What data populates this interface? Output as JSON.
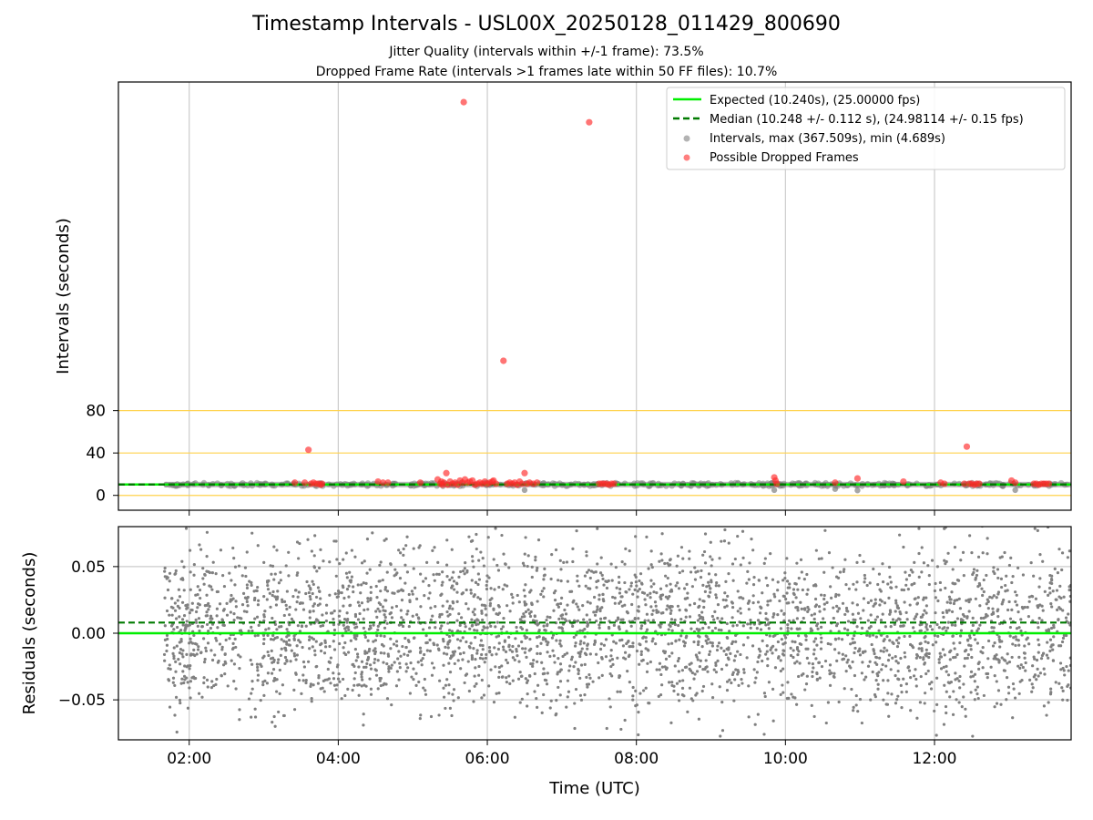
{
  "title": "Timestamp Intervals - USL00X_20250128_011429_800690",
  "subtitle_1": "Jitter Quality (intervals within +/-1 frame): 73.5%",
  "subtitle_2": "Dropped Frame Rate (intervals >1 frames late within 50 FF files): 10.7%",
  "colors": {
    "expected": "#00ee00",
    "median": "#007a00",
    "intervals": "#808080",
    "dropped": "#ff2a2a",
    "threshold": "#ffd24d",
    "grid": "#cccccc"
  },
  "chart_data": [
    {
      "type": "scatter",
      "panel": "intervals",
      "ylabel": "Intervals (seconds)",
      "xlim": [
        "01:03",
        "13:50"
      ],
      "ylim": [
        -14,
        390
      ],
      "xticks": [
        "02:00",
        "04:00",
        "06:00",
        "08:00",
        "10:00",
        "12:00"
      ],
      "yticks": [
        0,
        40,
        80
      ],
      "reference_lines": [
        {
          "name": "threshold",
          "y": 0
        },
        {
          "name": "threshold",
          "y": 40
        },
        {
          "name": "threshold",
          "y": 80
        }
      ],
      "grid": true,
      "legend_position": "top-right",
      "legend": [
        {
          "label": "Expected (10.240s), (25.00000 fps)",
          "marker": "line",
          "color": "#00ee00"
        },
        {
          "label": "Median (10.248 +/- 0.112 s), (24.98114 +/- 0.15 fps)",
          "marker": "dashed",
          "color": "#007a00"
        },
        {
          "label": "Intervals, max (367.509s), min (4.689s)",
          "marker": "dot",
          "color": "#808080"
        },
        {
          "label": "Possible Dropped Frames",
          "marker": "dot",
          "color": "#ff2a2a"
        }
      ],
      "expected_interval": 10.24,
      "median_interval": 10.248,
      "intervals_span": {
        "start": "01:40",
        "end": "13:50",
        "typical": 10.24,
        "min": 4.689,
        "max": 367.509
      },
      "dropped_frames": [
        {
          "x": "03:25",
          "y": 12
        },
        {
          "x": "03:33",
          "y": 12
        },
        {
          "x": "03:36",
          "y": 43
        },
        {
          "x": "03:38",
          "y": 11
        },
        {
          "x": "03:40",
          "y": 12
        },
        {
          "x": "03:42",
          "y": 11
        },
        {
          "x": "03:44",
          "y": 11
        },
        {
          "x": "03:46",
          "y": 10
        },
        {
          "x": "03:47",
          "y": 11
        },
        {
          "x": "04:32",
          "y": 13
        },
        {
          "x": "04:36",
          "y": 12
        },
        {
          "x": "04:40",
          "y": 12
        },
        {
          "x": "05:06",
          "y": 12
        },
        {
          "x": "05:20",
          "y": 15
        },
        {
          "x": "05:22",
          "y": 11
        },
        {
          "x": "05:23",
          "y": 13
        },
        {
          "x": "05:24",
          "y": 10
        },
        {
          "x": "05:25",
          "y": 12
        },
        {
          "x": "05:27",
          "y": 21
        },
        {
          "x": "05:28",
          "y": 10
        },
        {
          "x": "05:30",
          "y": 13
        },
        {
          "x": "05:32",
          "y": 11
        },
        {
          "x": "05:34",
          "y": 12
        },
        {
          "x": "05:36",
          "y": 10
        },
        {
          "x": "05:38",
          "y": 14
        },
        {
          "x": "05:40",
          "y": 12
        },
        {
          "x": "05:42",
          "y": 15
        },
        {
          "x": "05:44",
          "y": 12
        },
        {
          "x": "05:46",
          "y": 13
        },
        {
          "x": "05:48",
          "y": 14
        },
        {
          "x": "05:50",
          "y": 10
        },
        {
          "x": "05:41",
          "y": 371
        },
        {
          "x": "05:52",
          "y": 11
        },
        {
          "x": "05:54",
          "y": 12
        },
        {
          "x": "05:56",
          "y": 11
        },
        {
          "x": "05:58",
          "y": 13
        },
        {
          "x": "06:00",
          "y": 11
        },
        {
          "x": "06:02",
          "y": 12
        },
        {
          "x": "06:04",
          "y": 13
        },
        {
          "x": "06:05",
          "y": 14
        },
        {
          "x": "06:07",
          "y": 11
        },
        {
          "x": "06:13",
          "y": 127
        },
        {
          "x": "06:16",
          "y": 11
        },
        {
          "x": "06:18",
          "y": 12
        },
        {
          "x": "06:20",
          "y": 11
        },
        {
          "x": "06:22",
          "y": 12
        },
        {
          "x": "06:24",
          "y": 10
        },
        {
          "x": "06:26",
          "y": 13
        },
        {
          "x": "06:28",
          "y": 11
        },
        {
          "x": "06:30",
          "y": 21
        },
        {
          "x": "06:32",
          "y": 11
        },
        {
          "x": "06:34",
          "y": 12
        },
        {
          "x": "06:37",
          "y": 11
        },
        {
          "x": "06:40",
          "y": 12
        },
        {
          "x": "07:22",
          "y": 352
        },
        {
          "x": "07:30",
          "y": 11
        },
        {
          "x": "07:32",
          "y": 11
        },
        {
          "x": "07:34",
          "y": 11
        },
        {
          "x": "07:36",
          "y": 11
        },
        {
          "x": "07:38",
          "y": 10
        },
        {
          "x": "07:40",
          "y": 11
        },
        {
          "x": "07:42",
          "y": 11
        },
        {
          "x": "09:51",
          "y": 17
        },
        {
          "x": "09:52",
          "y": 14
        },
        {
          "x": "09:53",
          "y": 11
        },
        {
          "x": "10:40",
          "y": 12
        },
        {
          "x": "10:58",
          "y": 16
        },
        {
          "x": "11:35",
          "y": 13
        },
        {
          "x": "12:05",
          "y": 12
        },
        {
          "x": "12:08",
          "y": 11
        },
        {
          "x": "12:24",
          "y": 11
        },
        {
          "x": "12:26",
          "y": 46
        },
        {
          "x": "12:28",
          "y": 11
        },
        {
          "x": "12:30",
          "y": 11
        },
        {
          "x": "12:32",
          "y": 10
        },
        {
          "x": "12:34",
          "y": 11
        },
        {
          "x": "12:36",
          "y": 11
        },
        {
          "x": "13:02",
          "y": 14
        },
        {
          "x": "13:05",
          "y": 12
        },
        {
          "x": "13:20",
          "y": 11
        },
        {
          "x": "13:22",
          "y": 11
        },
        {
          "x": "13:24",
          "y": 10
        },
        {
          "x": "13:26",
          "y": 11
        },
        {
          "x": "13:28",
          "y": 11
        },
        {
          "x": "13:30",
          "y": 11
        },
        {
          "x": "13:32",
          "y": 11
        }
      ]
    },
    {
      "type": "scatter",
      "panel": "residuals",
      "xlabel": "Time (UTC)",
      "ylabel": "Residuals (seconds)",
      "xlim": [
        "01:03",
        "13:50"
      ],
      "ylim": [
        -0.08,
        0.08
      ],
      "xticks": [
        "02:00",
        "04:00",
        "06:00",
        "08:00",
        "10:00",
        "12:00"
      ],
      "yticks": [
        "0.05",
        "0.00",
        "−0.05"
      ],
      "ytick_values": [
        0.05,
        0.0,
        -0.05
      ],
      "grid": true,
      "expected_residual": 0.0,
      "median_residual": 0.008,
      "residual_points": "dense cloud of several thousand points spanning 01:40-13:50, spread roughly -0.08 to 0.08 s"
    }
  ]
}
